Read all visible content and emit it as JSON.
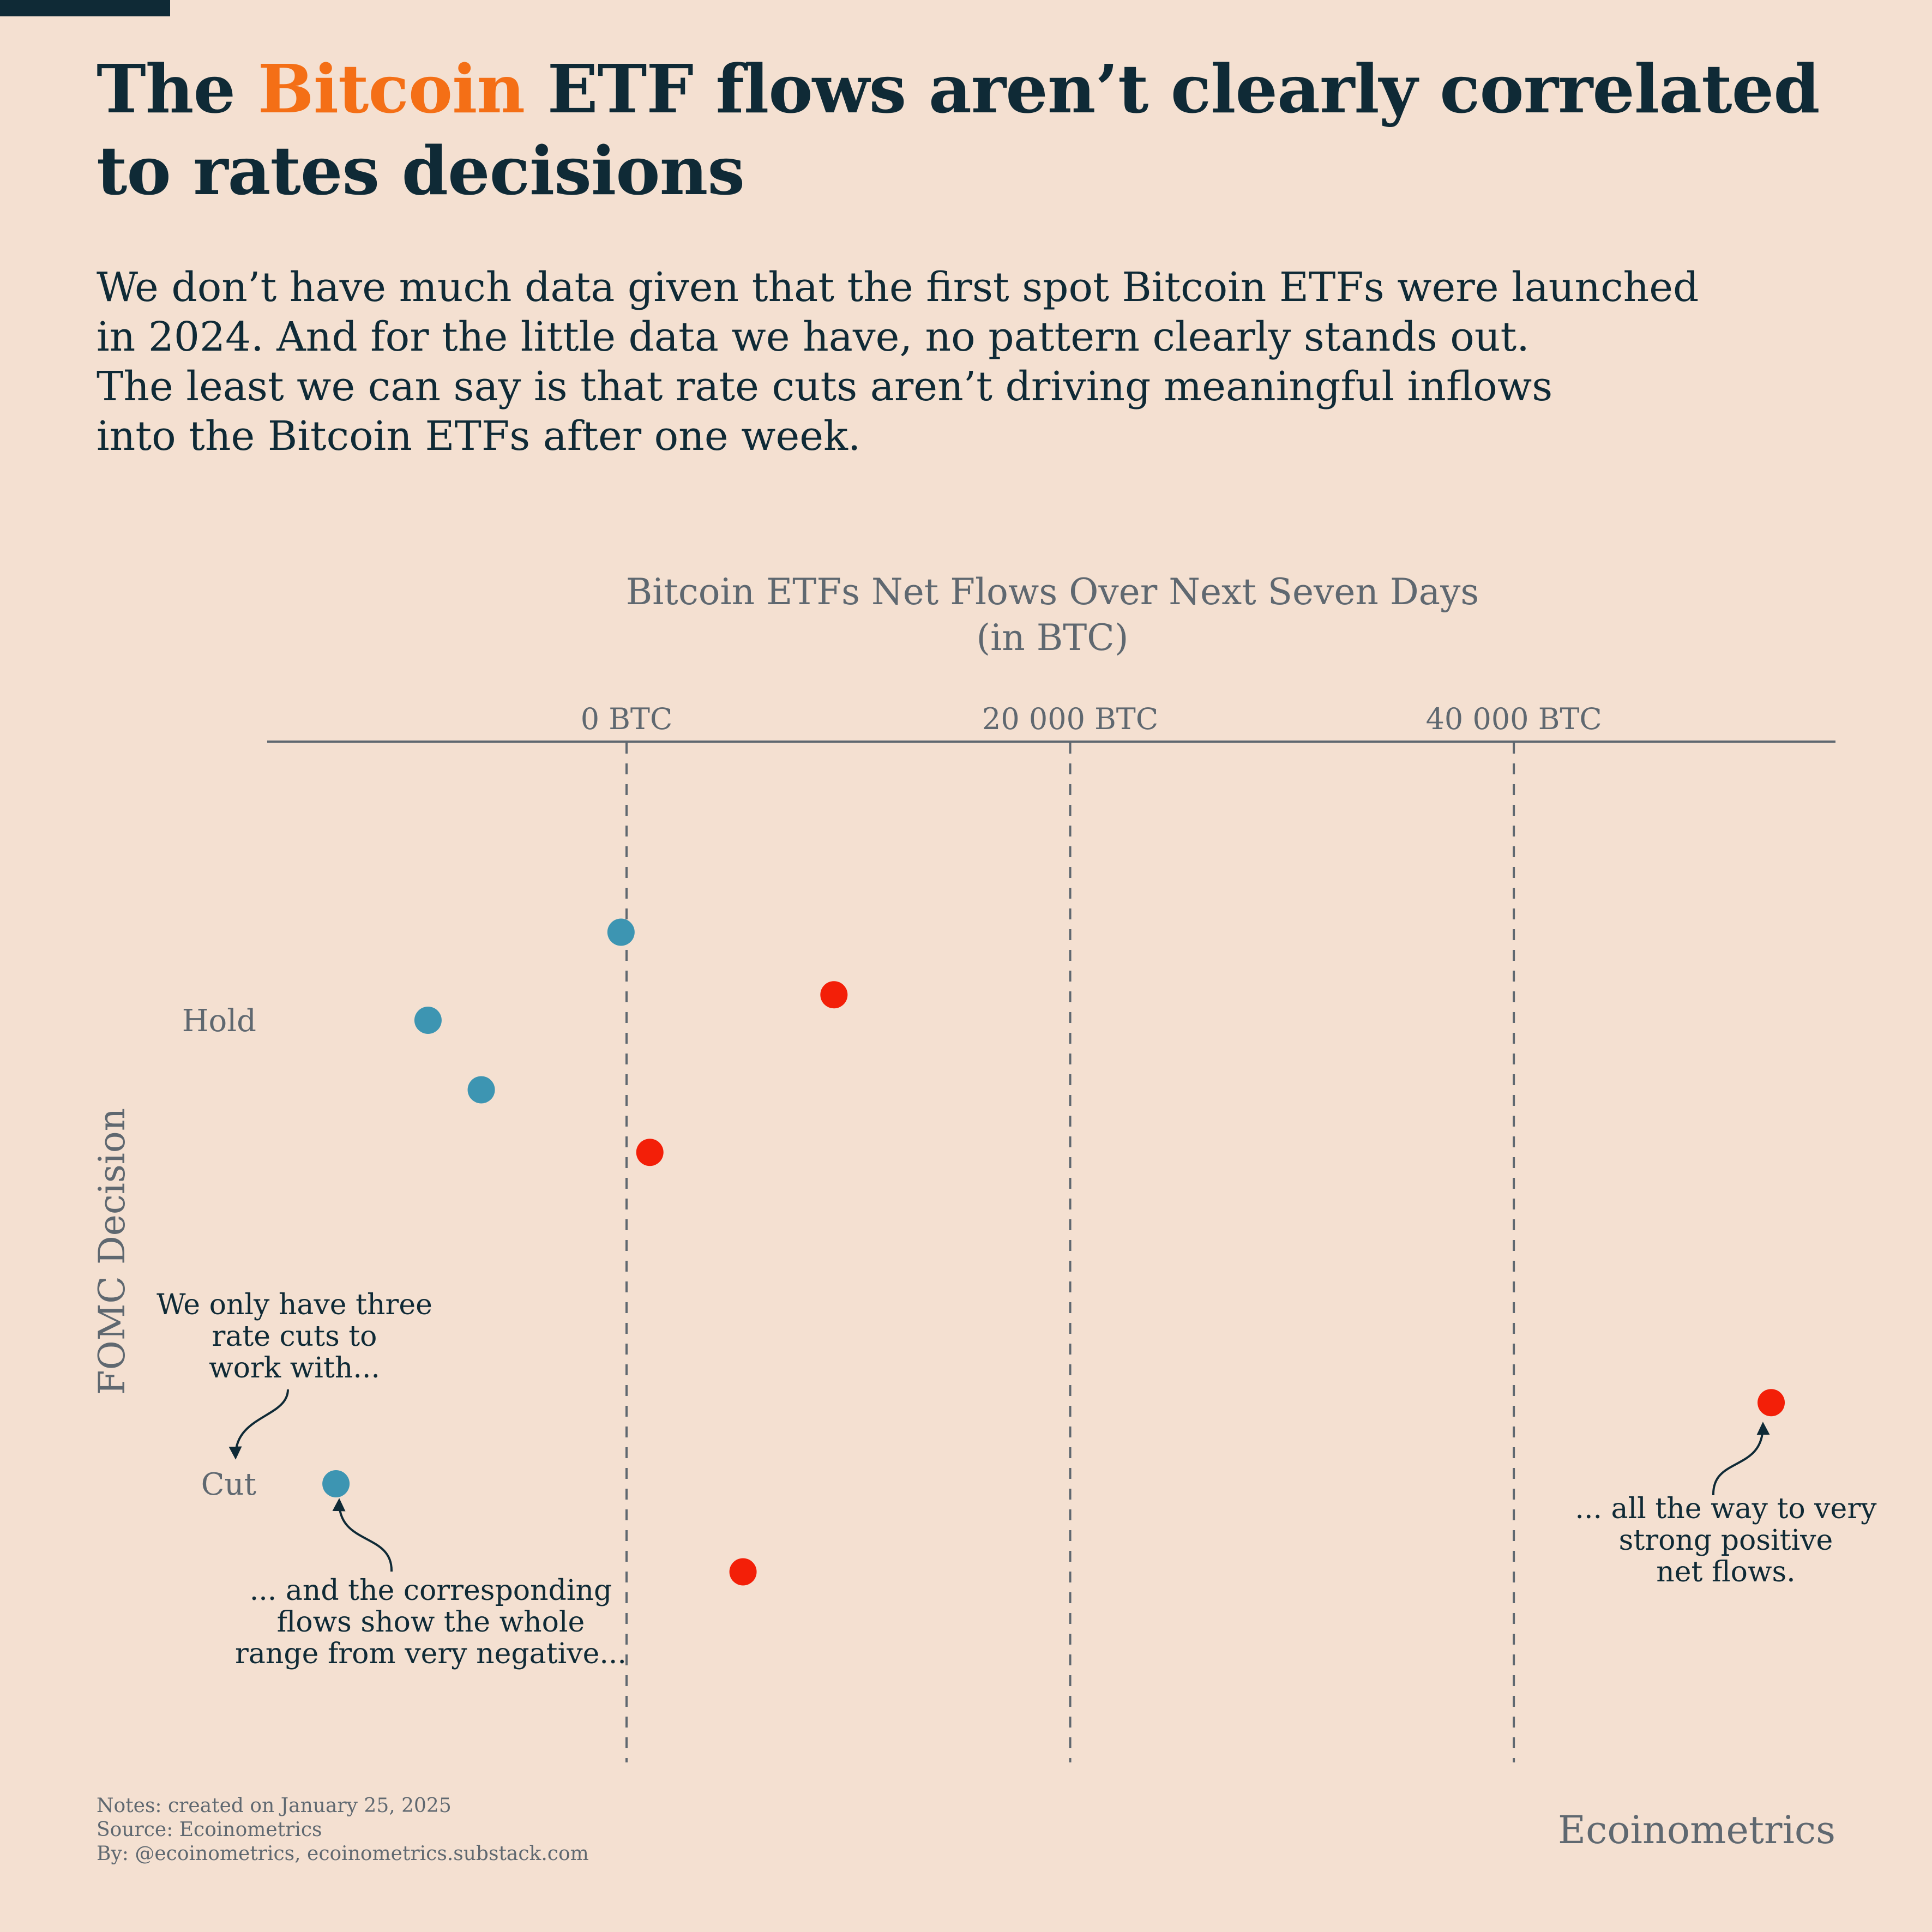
{
  "header": {
    "title_pre": "The ",
    "title_highlight": "Bitcoin",
    "title_post": " ETF flows aren’t clearly correlated to rates decisions",
    "highlight_color": "#f46f16",
    "subtitle_lines": [
      "We don’t have much data given that the first spot Bitcoin ETFs were launched",
      "in 2024. And for the little data we have, no pattern clearly stands out.",
      "The least we can say is that rate cuts aren’t driving meaningful inflows",
      "into the Bitcoin ETFs after one week."
    ]
  },
  "chart_data": {
    "type": "scatter",
    "title": "Bitcoin ETFs Net Flows Over Next Seven Days",
    "title_line2": "(in BTC)",
    "ylabel": "FOMC Decision",
    "x_ticks": [
      {
        "value": 0,
        "label": "0 BTC"
      },
      {
        "value": 20000,
        "label": "20 000 BTC"
      },
      {
        "value": 40000,
        "label": "40 000 BTC"
      }
    ],
    "xlim": [
      -16200,
      54500
    ],
    "categories": [
      "Hold",
      "Cut"
    ],
    "grid": "vertical dashed",
    "colors": {
      "positive": "#f31f08",
      "negative": "#3d95b2"
    },
    "points": [
      {
        "category": "Hold",
        "x": -250,
        "offset": -0.38,
        "sign": "negative"
      },
      {
        "category": "Hold",
        "x": 9350,
        "offset": -0.11,
        "sign": "positive"
      },
      {
        "category": "Hold",
        "x": -8950,
        "offset": 0.0,
        "sign": "negative"
      },
      {
        "category": "Hold",
        "x": -6550,
        "offset": 0.3,
        "sign": "negative"
      },
      {
        "category": "Hold",
        "x": 1050,
        "offset": 0.57,
        "sign": "positive"
      },
      {
        "category": "Cut",
        "x": 51600,
        "offset": -0.35,
        "sign": "positive"
      },
      {
        "category": "Cut",
        "x": -13100,
        "offset": 0.0,
        "sign": "negative"
      },
      {
        "category": "Cut",
        "x": 5250,
        "offset": 0.38,
        "sign": "positive"
      }
    ],
    "annotations": [
      {
        "lines": [
          "We only have three",
          "rate cuts to",
          "work with..."
        ]
      },
      {
        "lines": [
          "... and the corresponding",
          "flows show the whole",
          "range from very negative..."
        ]
      },
      {
        "lines": [
          "... all the way to very",
          "strong positive",
          "net flows."
        ]
      }
    ]
  },
  "footer": {
    "notes": "Notes: created on January 25, 2025",
    "source": "Source: Ecoinometrics",
    "by": "By: @ecoinometrics, ecoinometrics.substack.com",
    "brand": "Ecoinometrics"
  }
}
